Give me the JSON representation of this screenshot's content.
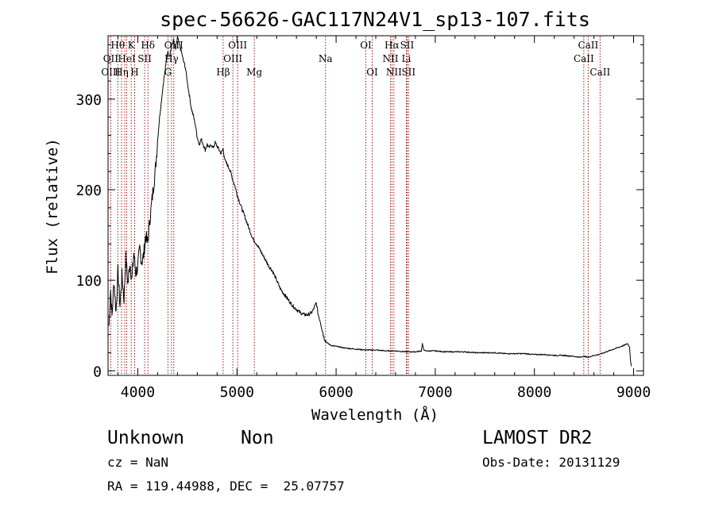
{
  "chart_data": {
    "type": "line",
    "title": "spec-56626-GAC117N24V1_sp13-107.fits",
    "xlabel": "Wavelength (Å)",
    "ylabel": "Flux (relative)",
    "xlim": [
      3700,
      9100
    ],
    "ylim": [
      -5,
      370
    ],
    "x_ticks": [
      {
        "value": 4000,
        "label": "4000"
      },
      {
        "value": 5000,
        "label": "5000"
      },
      {
        "value": 6000,
        "label": "6000"
      },
      {
        "value": 7000,
        "label": "7000"
      },
      {
        "value": 8000,
        "label": "8000"
      },
      {
        "value": 9000,
        "label": "9000"
      }
    ],
    "y_ticks": [
      {
        "value": 0,
        "label": "0"
      },
      {
        "value": 100,
        "label": "100"
      },
      {
        "value": 200,
        "label": "200"
      },
      {
        "value": 300,
        "label": "300"
      }
    ],
    "series": [
      {
        "x": [
          3710,
          3725,
          3740,
          3760,
          3780,
          3800,
          3820,
          3840,
          3860,
          3880,
          3900,
          3920,
          3940,
          3960,
          3980,
          4000,
          4020,
          4040,
          4060,
          4080,
          4100,
          4120,
          4140,
          4160,
          4180,
          4200,
          4220,
          4240,
          4260,
          4280,
          4300,
          4320,
          4340,
          4360,
          4380,
          4400,
          4420,
          4440,
          4460,
          4480,
          4500,
          4520,
          4540,
          4560,
          4580,
          4600,
          4620,
          4640,
          4660,
          4680,
          4700,
          4720,
          4740,
          4760,
          4780,
          4800,
          4820,
          4840,
          4860,
          4880,
          4900,
          4920,
          4940,
          4960,
          4980,
          5000,
          5040,
          5080,
          5120,
          5160,
          5200,
          5240,
          5280,
          5320,
          5360,
          5400,
          5440,
          5480,
          5520,
          5560,
          5600,
          5640,
          5680,
          5720,
          5760,
          5780,
          5800,
          5820,
          5840,
          5860,
          5880,
          5900,
          5920,
          5950,
          6000,
          6100,
          6200,
          6300,
          6400,
          6500,
          6600,
          6700,
          6800,
          6860,
          6870,
          6880,
          6900,
          7000,
          7100,
          7200,
          7300,
          7400,
          7500,
          7600,
          7700,
          7800,
          7900,
          8000,
          8100,
          8200,
          8300,
          8400,
          8450,
          8500,
          8540,
          8600,
          8650,
          8700,
          8750,
          8800,
          8850,
          8900,
          8940,
          8960,
          8970,
          8980
        ],
        "y": [
          50,
          90,
          60,
          100,
          65,
          110,
          72,
          105,
          80,
          125,
          95,
          120,
          100,
          130,
          108,
          115,
          135,
          120,
          128,
          150,
          140,
          165,
          185,
          205,
          225,
          255,
          280,
          300,
          320,
          335,
          352,
          348,
          358,
          365,
          355,
          368,
          360,
          352,
          342,
          335,
          318,
          305,
          290,
          282,
          272,
          258,
          250,
          256,
          250,
          244,
          250,
          246,
          250,
          246,
          252,
          248,
          244,
          240,
          245,
          232,
          228,
          224,
          218,
          210,
          204,
          195,
          182,
          170,
          158,
          146,
          140,
          132,
          124,
          116,
          110,
          100,
          90,
          84,
          78,
          72,
          68,
          64,
          62,
          62,
          65,
          70,
          75,
          62,
          55,
          45,
          36,
          32,
          30,
          28,
          27,
          25,
          24,
          23,
          23,
          22,
          22,
          21,
          21,
          22,
          30,
          24,
          22,
          22,
          21,
          21,
          21,
          20,
          20,
          20,
          19,
          19,
          19,
          18,
          18,
          17,
          17,
          16,
          15,
          16,
          15,
          17,
          18,
          20,
          22,
          24,
          26,
          28,
          30,
          26,
          10,
          5
        ]
      }
    ],
    "annotations": [
      {
        "text": "Hθ",
        "x": 3798,
        "row": 0
      },
      {
        "text": "OII",
        "x": 3727,
        "row": 1
      },
      {
        "text": "OIII",
        "x": 3727,
        "row": 2
      },
      {
        "text": "Hη",
        "x": 3836,
        "row": 2
      },
      {
        "text": "HeI",
        "x": 3889,
        "row": 1
      },
      {
        "text": "K",
        "x": 3934,
        "row": 0
      },
      {
        "text": "SII",
        "x": 4069,
        "row": 1
      },
      {
        "text": "H",
        "x": 3968,
        "row": 2
      },
      {
        "text": "Hδ",
        "x": 4102,
        "row": 0
      },
      {
        "text": "OIII",
        "x": 4363,
        "row": 0
      },
      {
        "text": "Hγ",
        "x": 4340,
        "row": 1
      },
      {
        "text": "G",
        "x": 4304,
        "row": 2
      },
      {
        "text": "OIII",
        "x": 5007,
        "row": 0
      },
      {
        "text": "OIII",
        "x": 4959,
        "row": 1
      },
      {
        "text": "Hβ",
        "x": 4861,
        "row": 2
      },
      {
        "text": "Mg",
        "x": 5175,
        "row": 2
      },
      {
        "text": "Na",
        "x": 5893,
        "row": 1
      },
      {
        "text": "OI",
        "x": 6300,
        "row": 0
      },
      {
        "text": "OI",
        "x": 6364,
        "row": 2
      },
      {
        "text": "Hα",
        "x": 6563,
        "row": 0
      },
      {
        "text": "SII",
        "x": 6716,
        "row": 0
      },
      {
        "text": "NII",
        "x": 6548,
        "row": 1
      },
      {
        "text": "Li",
        "x": 6708,
        "row": 1
      },
      {
        "text": "NII",
        "x": 6583,
        "row": 2
      },
      {
        "text": "SII",
        "x": 6731,
        "row": 2
      },
      {
        "text": "CaII",
        "x": 8542,
        "row": 0
      },
      {
        "text": "CaII",
        "x": 8498,
        "row": 1
      },
      {
        "text": "CaII",
        "x": 8662,
        "row": 2
      }
    ],
    "reference_lines_x": [
      3727,
      3798,
      3836,
      3869,
      3889,
      3934,
      3968,
      4069,
      4102,
      4304,
      4340,
      4363,
      4861,
      4959,
      5007,
      5175,
      5893,
      6300,
      6364,
      6548,
      6563,
      6583,
      6708,
      6716,
      6731,
      8498,
      8542,
      8662
    ],
    "legend": "none",
    "grid": false
  },
  "info": {
    "object_class": "Unknown",
    "object_subclass": "Non",
    "survey": "LAMOST DR2",
    "redshift": "cz = NaN",
    "obs_date": "Obs-Date: 20131129",
    "coords": "RA = 119.44988, DEC =  25.07757"
  },
  "colors": {
    "spectrum": "#000000",
    "reference_lines": "#8b0000",
    "background": "#ffffff"
  }
}
